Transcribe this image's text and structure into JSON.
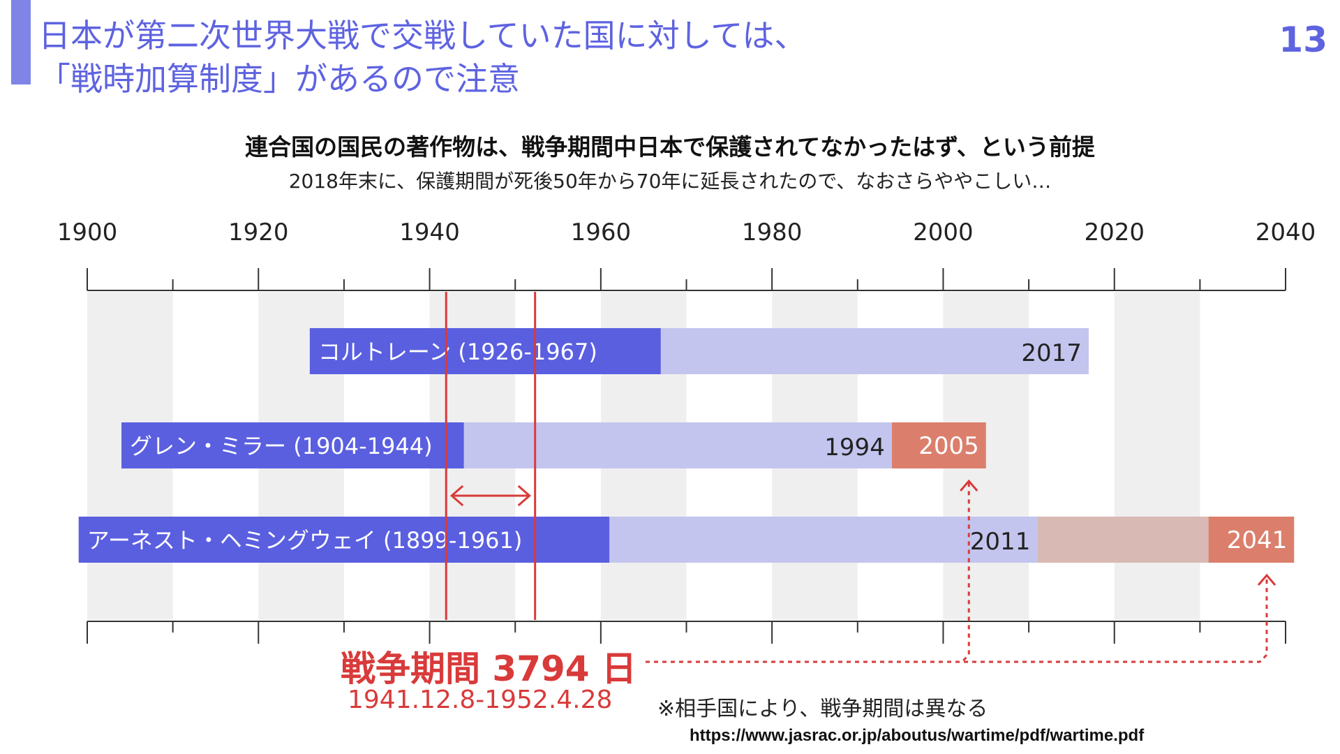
{
  "slide": {
    "title_line1": "日本が第二次世界大戦で交戦していた国に対しては、",
    "title_line2": "「戦時加算制度」があるので注意",
    "page_number": "13",
    "subtitle": "連合国の国民の著作物は、戦争期間中日本で保護されてなかったはず、という前提",
    "subtitle2": "2018年末に、保護期間が死後50年から70年に延長されたので、なおさらややこしい…",
    "war_label": "戦争期間 3794 日",
    "war_dates": "1941.12.8-1952.4.28",
    "note": "※相手国により、戦争期間は異なる",
    "source_url": "https://www.jasrac.or.jp/aboutus/wartime/pdf/wartime.pdf"
  },
  "chart_data": {
    "type": "bar",
    "xlim": [
      1900,
      2040
    ],
    "x_ticks": [
      1900,
      1920,
      1940,
      1960,
      1980,
      2000,
      2020,
      2040
    ],
    "x_tick_labels": [
      "1900",
      "1920",
      "1940",
      "1960",
      "1980",
      "2000",
      "2020",
      "2040"
    ],
    "minor_tick_step": 10,
    "war_period": {
      "start": 1941.93,
      "end": 1952.32
    },
    "rows": [
      {
        "label": "コルトレーン (1926-1967)",
        "birth": 1926,
        "death": 1967,
        "protection_end": 2017,
        "protection_end_label": "2017",
        "extension_end": null,
        "extension_end_label": ""
      },
      {
        "label": "グレン・ミラー (1904-1944)",
        "birth": 1904,
        "death": 1944,
        "protection_end": 1994,
        "protection_end_label": "1994",
        "extension_end": 2005,
        "extension_end_label": "2005"
      },
      {
        "label": "アーネスト・ヘミングウェイ (1899-1961)",
        "birth": 1899,
        "death": 1961,
        "protection_end": 2011,
        "protection_end_label": "2011",
        "extension_end": 2041,
        "extension_end_label": "2041",
        "extension_pale_until": 2031
      }
    ],
    "colors": {
      "life": "#5a5fe0",
      "protection": "#c3c5ee",
      "extension": "#db7f6c",
      "extension_pale": "#d8b9b3",
      "war": "#d93a3a",
      "band": "#efefef",
      "axis": "#333333"
    }
  }
}
